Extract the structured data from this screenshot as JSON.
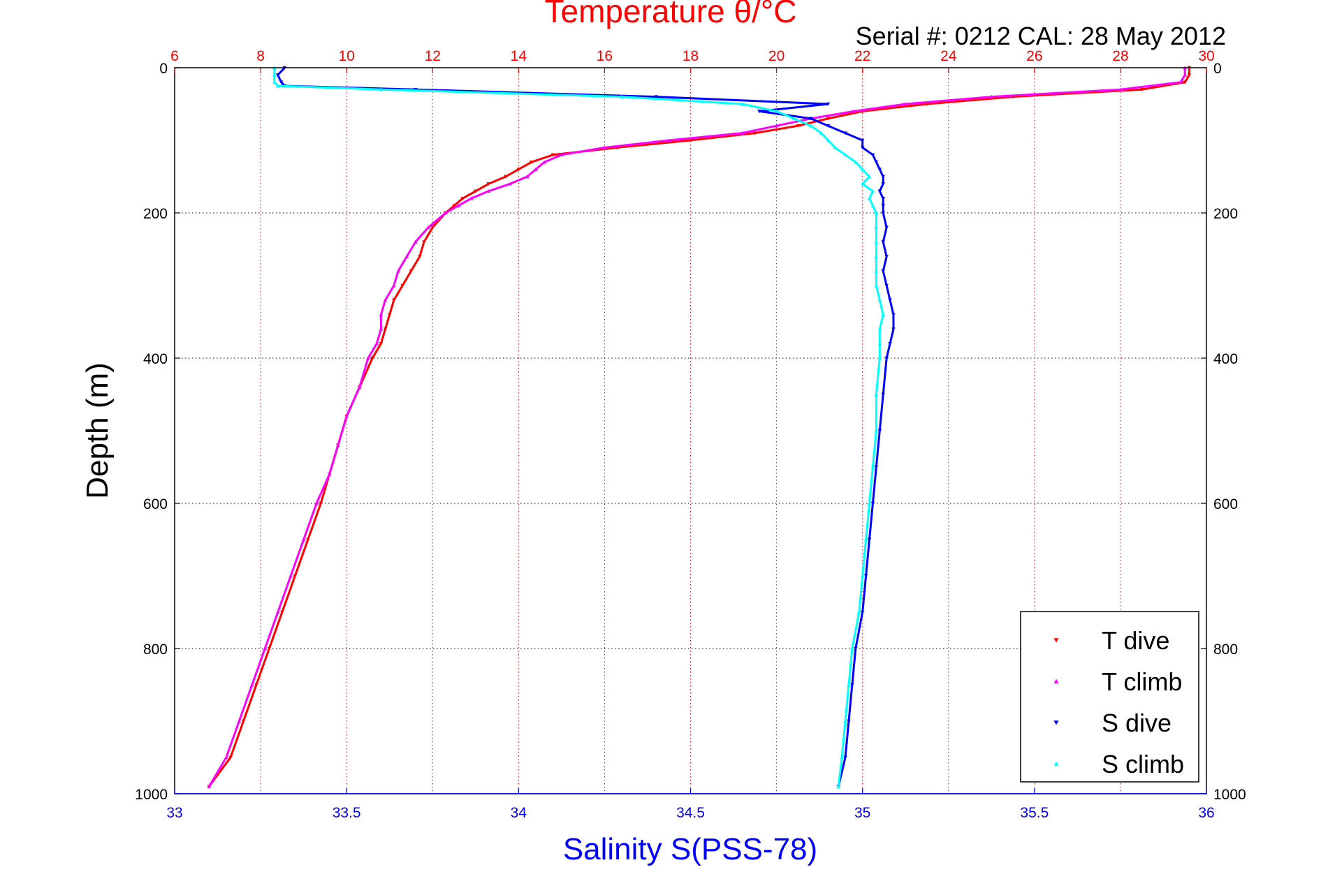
{
  "chart_data": {
    "type": "scatter",
    "title": "Temperature θ/°C",
    "subtitle": "Serial #: 0212  CAL: 28 May 2012",
    "xlabel": "Salinity S(PSS-78)",
    "ylabel": "Depth (m)",
    "x_top_label": "Temperature θ/°C",
    "x_bottom_range": [
      33,
      36
    ],
    "x_top_range": [
      6,
      30
    ],
    "y_range": [
      0,
      1000
    ],
    "y_reversed": true,
    "grid": true,
    "legend_position": "bottom-right",
    "x_bottom_ticks": [
      "33",
      "33.5",
      "34",
      "34.5",
      "35",
      "35.5",
      "36"
    ],
    "x_top_ticks": [
      "6",
      "8",
      "10",
      "12",
      "14",
      "16",
      "18",
      "20",
      "22",
      "24",
      "26",
      "28",
      "30"
    ],
    "y_ticks": [
      "0",
      "200",
      "400",
      "600",
      "800",
      "1000"
    ],
    "colors": {
      "temperature_axis": "#ff0000",
      "salinity_axis": "#0000ff",
      "t_dive": "#ff0000",
      "t_climb": "#ff00ff",
      "s_dive": "#0000ff",
      "s_climb": "#00ffff"
    },
    "series": [
      {
        "name": "T dive",
        "axis": "temperature",
        "marker": "triangle-down",
        "depth": [
          0,
          10,
          20,
          30,
          40,
          50,
          60,
          70,
          80,
          90,
          100,
          110,
          120,
          130,
          140,
          150,
          160,
          170,
          180,
          190,
          200,
          220,
          240,
          260,
          280,
          300,
          320,
          340,
          360,
          380,
          400,
          440,
          480,
          520,
          560,
          600,
          650,
          700,
          750,
          800,
          850,
          900,
          950,
          990
        ],
        "values": [
          29.6,
          29.6,
          29.5,
          28.5,
          25.5,
          23.5,
          22.0,
          21.2,
          20.5,
          19.5,
          18.0,
          16.3,
          14.8,
          14.3,
          14.0,
          13.7,
          13.3,
          13.0,
          12.7,
          12.5,
          12.3,
          12.0,
          11.8,
          11.7,
          11.5,
          11.3,
          11.1,
          11.0,
          10.9,
          10.8,
          10.6,
          10.3,
          10.0,
          9.8,
          9.6,
          9.4,
          9.1,
          8.8,
          8.5,
          8.2,
          7.9,
          7.6,
          7.3,
          6.8
        ]
      },
      {
        "name": "T climb",
        "axis": "temperature",
        "marker": "triangle-up",
        "depth": [
          0,
          10,
          20,
          30,
          40,
          50,
          60,
          70,
          80,
          90,
          100,
          110,
          120,
          130,
          140,
          150,
          160,
          170,
          180,
          190,
          200,
          220,
          240,
          260,
          280,
          300,
          320,
          340,
          360,
          380,
          400,
          440,
          480,
          520,
          560,
          600,
          650,
          700,
          750,
          800,
          850,
          900,
          950,
          990
        ],
        "values": [
          29.5,
          29.5,
          29.4,
          28.0,
          25.0,
          23.0,
          21.8,
          20.8,
          20.0,
          19.2,
          17.5,
          16.0,
          15.0,
          14.6,
          14.4,
          14.2,
          13.8,
          13.3,
          12.9,
          12.6,
          12.3,
          11.9,
          11.6,
          11.4,
          11.2,
          11.1,
          10.9,
          10.8,
          10.8,
          10.7,
          10.5,
          10.3,
          10.0,
          9.8,
          9.6,
          9.3,
          9.0,
          8.7,
          8.4,
          8.1,
          7.8,
          7.5,
          7.2,
          6.8
        ]
      },
      {
        "name": "S dive",
        "axis": "salinity",
        "marker": "triangle-down",
        "depth": [
          0,
          10,
          20,
          25,
          30,
          40,
          50,
          60,
          70,
          80,
          90,
          100,
          110,
          120,
          130,
          140,
          150,
          160,
          170,
          180,
          190,
          200,
          220,
          240,
          260,
          280,
          300,
          320,
          340,
          360,
          380,
          400,
          450,
          500,
          550,
          600,
          650,
          700,
          750,
          800,
          850,
          900,
          950,
          990
        ],
        "values": [
          33.32,
          33.3,
          33.31,
          33.32,
          33.7,
          34.4,
          34.9,
          34.7,
          34.85,
          34.9,
          34.95,
          35.0,
          35.0,
          35.03,
          35.04,
          35.05,
          35.06,
          35.06,
          35.05,
          35.06,
          35.06,
          35.06,
          35.07,
          35.06,
          35.07,
          35.06,
          35.07,
          35.08,
          35.09,
          35.09,
          35.08,
          35.07,
          35.06,
          35.05,
          35.04,
          35.03,
          35.02,
          35.01,
          35.0,
          34.98,
          34.97,
          34.96,
          34.95,
          34.93
        ]
      },
      {
        "name": "S climb",
        "axis": "salinity",
        "marker": "triangle-up",
        "depth": [
          0,
          10,
          20,
          25,
          30,
          40,
          50,
          60,
          70,
          80,
          90,
          100,
          110,
          120,
          130,
          140,
          150,
          160,
          170,
          180,
          190,
          200,
          220,
          240,
          260,
          280,
          300,
          320,
          340,
          360,
          380,
          400,
          450,
          500,
          550,
          600,
          650,
          700,
          750,
          800,
          850,
          900,
          950,
          990
        ],
        "values": [
          33.29,
          33.29,
          33.29,
          33.3,
          33.6,
          34.3,
          34.65,
          34.75,
          34.8,
          34.85,
          34.88,
          34.9,
          34.92,
          34.95,
          34.98,
          35.0,
          35.02,
          35.0,
          35.03,
          35.02,
          35.03,
          35.04,
          35.04,
          35.04,
          35.04,
          35.04,
          35.04,
          35.05,
          35.06,
          35.05,
          35.05,
          35.05,
          35.04,
          35.04,
          35.03,
          35.02,
          35.01,
          35.0,
          34.99,
          34.97,
          34.96,
          34.95,
          34.94,
          34.93
        ]
      }
    ]
  }
}
